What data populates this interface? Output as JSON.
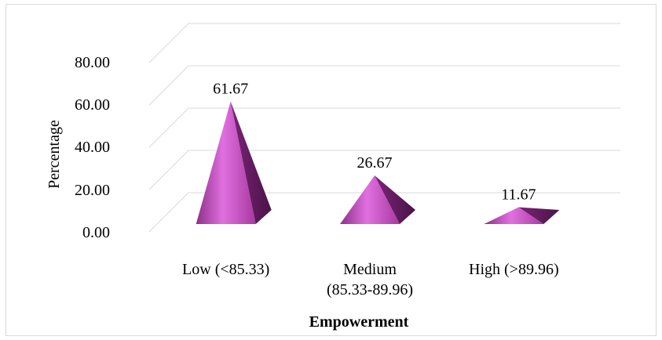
{
  "chart_data": {
    "type": "bar",
    "style": "3d-pyramid",
    "categories": [
      "Low (<85.33)",
      "Medium\n(85.33-89.96)",
      "High (>89.96)"
    ],
    "series": [
      {
        "values": [
          61.67,
          26.67,
          11.67
        ]
      }
    ],
    "data_labels": [
      "61.67",
      "26.67",
      "11.67"
    ],
    "y_ticks": [
      "0.00",
      "20.00",
      "40.00",
      "60.00",
      "80.00"
    ],
    "ylim": [
      0,
      80
    ],
    "xlabel": "Empowerment",
    "ylabel": "Percentage",
    "grid": true,
    "legend": "none",
    "colors": {
      "pyramid_light": "#e070df",
      "pyramid_mid": "#b83fb4",
      "pyramid_dark": "#5e1a5c",
      "grid": "#d9d9d9"
    }
  }
}
